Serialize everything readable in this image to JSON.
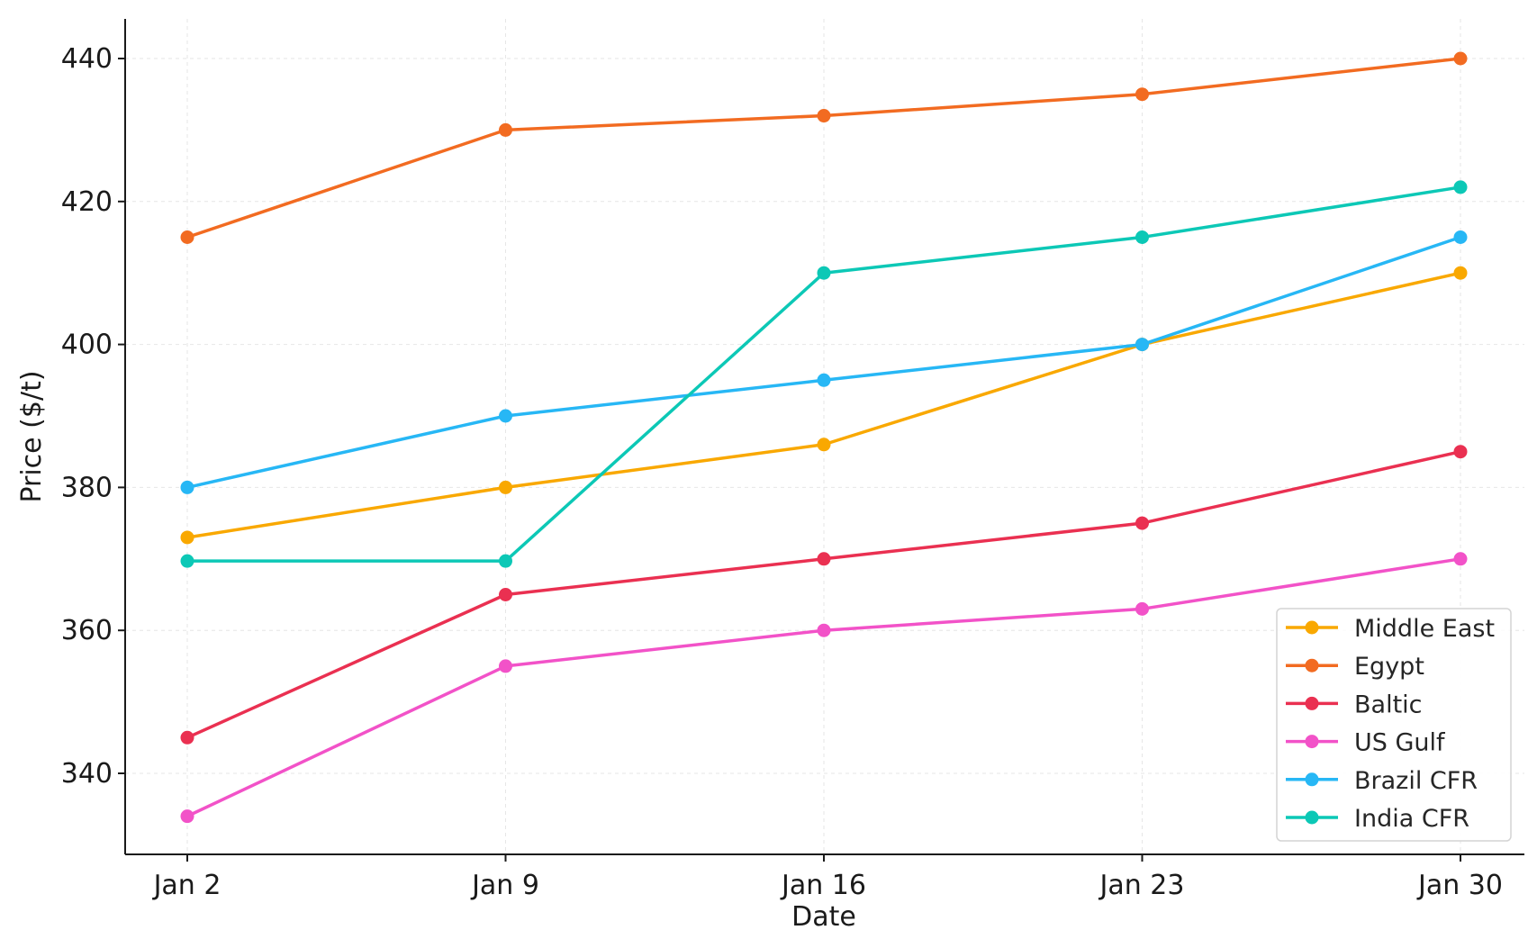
{
  "chart_data": {
    "type": "line",
    "title": "",
    "xlabel": "Date",
    "ylabel": "Price ($/t)",
    "categories": [
      "Jan 2",
      "Jan 9",
      "Jan 16",
      "Jan 23",
      "Jan 30"
    ],
    "x_days": [
      2,
      9,
      16,
      23,
      30
    ],
    "ylim": [
      329,
      445
    ],
    "yticks": [
      340,
      360,
      380,
      400,
      420,
      440
    ],
    "grid": true,
    "legend_position": "bottom-right",
    "series": [
      {
        "name": "Middle East",
        "color": "#f9a800",
        "values": [
          373,
          380,
          386,
          400,
          410
        ]
      },
      {
        "name": "Egypt",
        "color": "#f26b21",
        "values": [
          415,
          430,
          432,
          435,
          440
        ]
      },
      {
        "name": "Baltic",
        "color": "#ea3051",
        "values": [
          345,
          365,
          370,
          375,
          385
        ]
      },
      {
        "name": "US Gulf",
        "color": "#f252c8",
        "values": [
          334,
          355,
          360,
          363,
          370
        ]
      },
      {
        "name": "Brazil CFR",
        "color": "#27b7f5",
        "values": [
          380,
          390,
          395,
          400,
          415
        ]
      },
      {
        "name": "India CFR",
        "color": "#0cc8b6",
        "values": [
          369.7,
          369.7,
          410,
          415,
          422
        ]
      }
    ]
  }
}
